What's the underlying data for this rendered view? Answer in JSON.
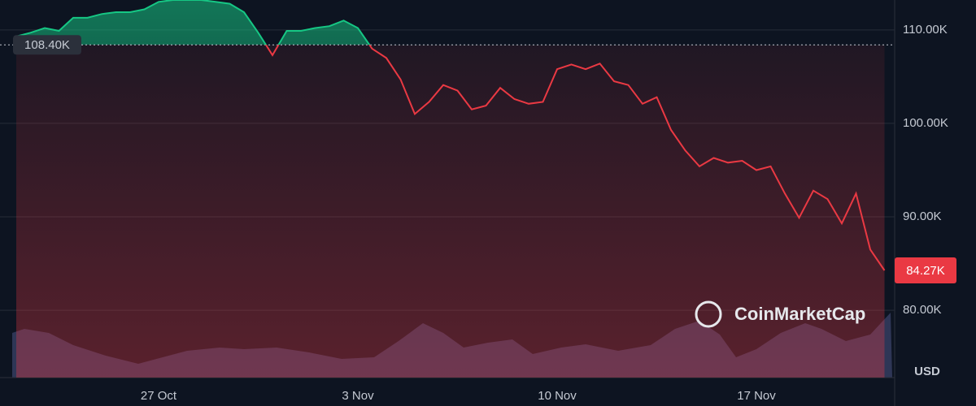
{
  "chart_data": {
    "type": "line",
    "categories": [
      null,
      null,
      null,
      null,
      null,
      null,
      null,
      null,
      null,
      null,
      "27 Oct",
      null,
      null,
      null,
      null,
      null,
      null,
      null,
      null,
      null,
      null,
      null,
      null,
      null,
      "3 Nov",
      null,
      null,
      null,
      null,
      null,
      null,
      null,
      null,
      null,
      null,
      null,
      null,
      null,
      "10 Nov",
      null,
      null,
      null,
      null,
      null,
      null,
      null,
      null,
      null,
      null,
      null,
      null,
      null,
      "17 Nov",
      null,
      null,
      null,
      null,
      null,
      null,
      null,
      null,
      null
    ],
    "values": [
      109.3,
      109.7,
      110.2,
      109.9,
      111.3,
      111.3,
      111.7,
      111.9,
      111.9,
      112.2,
      113.0,
      113.2,
      113.2,
      113.2,
      113.0,
      112.8,
      111.9,
      109.7,
      107.3,
      109.9,
      109.9,
      110.2,
      110.4,
      111.0,
      110.2,
      108.0,
      107.0,
      104.7,
      101.0,
      102.3,
      104.1,
      103.5,
      101.5,
      101.9,
      103.8,
      102.6,
      102.1,
      102.3,
      105.8,
      106.3,
      105.8,
      106.4,
      104.5,
      104.1,
      102.1,
      102.8,
      99.3,
      97.1,
      95.4,
      96.3,
      95.8,
      96.0,
      95.0,
      95.4,
      92.5,
      89.9,
      92.8,
      91.9,
      89.3,
      92.5,
      86.5,
      84.27
    ],
    "last_label": "84.27K",
    "baseline": {
      "value": 108.4,
      "label": "108.40K"
    },
    "up_color": "#16c784",
    "down_color": "#ea3943",
    "ylim": [
      72.8,
      113.2
    ],
    "yticks": [
      {
        "value": 80,
        "label": "80.00K"
      },
      {
        "value": 90,
        "label": "90.00K"
      },
      {
        "value": 100,
        "label": "100.00K"
      },
      {
        "value": 110,
        "label": "110.00K"
      }
    ],
    "grid": true,
    "unit": "USD",
    "watermark": "CoinMarketCap"
  }
}
